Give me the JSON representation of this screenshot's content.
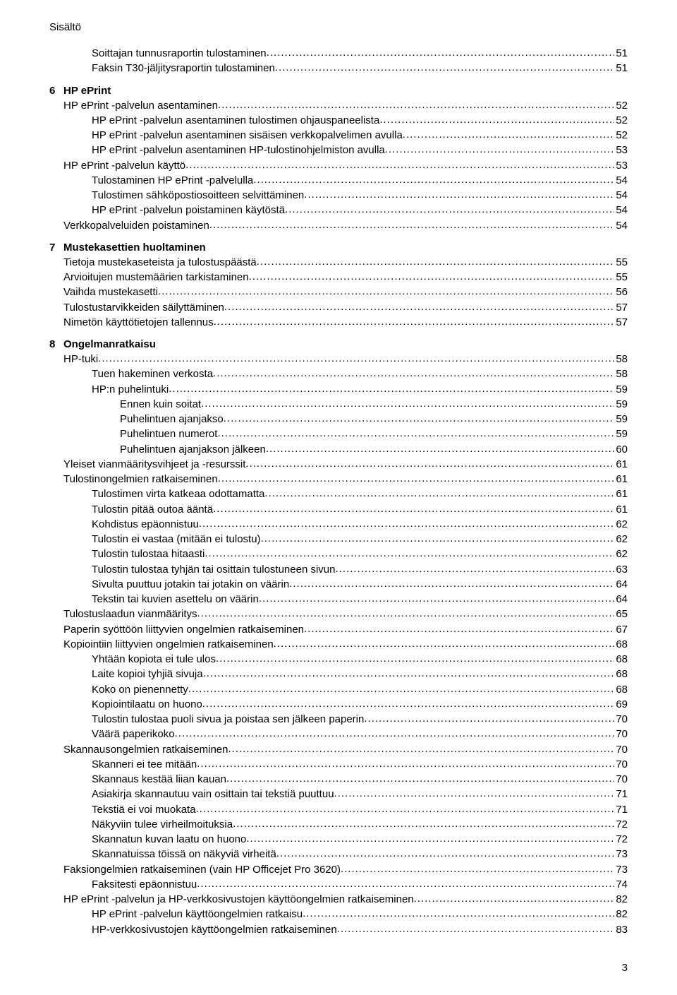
{
  "top_heading": "Sisältö",
  "page_number": "3",
  "entries": [
    {
      "type": "line",
      "indent": 2,
      "label": "Soittajan tunnusraportin tulostaminen",
      "page": "51"
    },
    {
      "type": "line",
      "indent": 2,
      "label": "Faksin T30-jäljitysraportin tulostaminen",
      "page": "51"
    },
    {
      "type": "chapter",
      "num": "6",
      "title": "HP ePrint"
    },
    {
      "type": "line",
      "indent": 1,
      "label": "HP ePrint -palvelun asentaminen",
      "page": "52"
    },
    {
      "type": "line",
      "indent": 2,
      "label": "HP ePrint -palvelun asentaminen tulostimen ohjauspaneelista",
      "page": "52"
    },
    {
      "type": "line",
      "indent": 2,
      "label": "HP ePrint -palvelun asentaminen sisäisen verkkopalvelimen avulla",
      "page": "52"
    },
    {
      "type": "line",
      "indent": 2,
      "label": "HP ePrint -palvelun asentaminen HP-tulostinohjelmiston avulla",
      "page": "53"
    },
    {
      "type": "line",
      "indent": 1,
      "label": "HP ePrint -palvelun käyttö",
      "page": "53"
    },
    {
      "type": "line",
      "indent": 2,
      "label": "Tulostaminen HP ePrint -palvelulla",
      "page": "54"
    },
    {
      "type": "line",
      "indent": 2,
      "label": "Tulostimen sähköpostiosoitteen selvittäminen",
      "page": "54"
    },
    {
      "type": "line",
      "indent": 2,
      "label": "HP ePrint -palvelun poistaminen käytöstä",
      "page": "54"
    },
    {
      "type": "line",
      "indent": 1,
      "label": "Verkkopalveluiden poistaminen",
      "page": "54"
    },
    {
      "type": "chapter",
      "num": "7",
      "title": "Mustekasettien huoltaminen"
    },
    {
      "type": "line",
      "indent": 1,
      "label": "Tietoja mustekaseteista ja tulostuspäästä",
      "page": "55"
    },
    {
      "type": "line",
      "indent": 1,
      "label": "Arvioitujen mustemäärien tarkistaminen",
      "page": "55"
    },
    {
      "type": "line",
      "indent": 1,
      "label": "Vaihda mustekasetti",
      "page": "56"
    },
    {
      "type": "line",
      "indent": 1,
      "label": "Tulostustarvikkeiden säilyttäminen",
      "page": "57"
    },
    {
      "type": "line",
      "indent": 1,
      "label": "Nimetön käyttötietojen tallennus",
      "page": "57"
    },
    {
      "type": "chapter",
      "num": "8",
      "title": "Ongelmanratkaisu"
    },
    {
      "type": "line",
      "indent": 1,
      "label": "HP-tuki",
      "page": "58"
    },
    {
      "type": "line",
      "indent": 2,
      "label": "Tuen hakeminen verkosta",
      "page": "58"
    },
    {
      "type": "line",
      "indent": 2,
      "label": "HP:n puhelintuki",
      "page": "59"
    },
    {
      "type": "line",
      "indent": 3,
      "label": "Ennen kuin soitat",
      "page": "59"
    },
    {
      "type": "line",
      "indent": 3,
      "label": "Puhelintuen ajanjakso",
      "page": "59"
    },
    {
      "type": "line",
      "indent": 3,
      "label": "Puhelintuen numerot",
      "page": "59"
    },
    {
      "type": "line",
      "indent": 3,
      "label": "Puhelintuen ajanjakson jälkeen",
      "page": "60"
    },
    {
      "type": "line",
      "indent": 1,
      "label": "Yleiset vianmääritysvihjeet ja -resurssit",
      "page": "61"
    },
    {
      "type": "line",
      "indent": 1,
      "label": "Tulostinongelmien ratkaiseminen",
      "page": "61"
    },
    {
      "type": "line",
      "indent": 2,
      "label": "Tulostimen virta katkeaa odottamatta",
      "page": "61"
    },
    {
      "type": "line",
      "indent": 2,
      "label": "Tulostin pitää outoa ääntä",
      "page": "61"
    },
    {
      "type": "line",
      "indent": 2,
      "label": "Kohdistus epäonnistuu",
      "page": "62"
    },
    {
      "type": "line",
      "indent": 2,
      "label": "Tulostin ei vastaa (mitään ei tulostu)",
      "page": "62"
    },
    {
      "type": "line",
      "indent": 2,
      "label": "Tulostin tulostaa hitaasti",
      "page": "62"
    },
    {
      "type": "line",
      "indent": 2,
      "label": "Tulostin tulostaa tyhjän tai osittain tulostuneen sivun",
      "page": "63"
    },
    {
      "type": "line",
      "indent": 2,
      "label": "Sivulta puuttuu jotakin tai jotakin on väärin",
      "page": "64"
    },
    {
      "type": "line",
      "indent": 2,
      "label": "Tekstin tai kuvien asettelu on väärin",
      "page": "64"
    },
    {
      "type": "line",
      "indent": 1,
      "label": "Tulostuslaadun vianmääritys",
      "page": "65"
    },
    {
      "type": "line",
      "indent": 1,
      "label": "Paperin syöttöön liittyvien ongelmien ratkaiseminen",
      "page": "67"
    },
    {
      "type": "line",
      "indent": 1,
      "label": "Kopiointiin liittyvien ongelmien ratkaiseminen",
      "page": "68"
    },
    {
      "type": "line",
      "indent": 2,
      "label": "Yhtään kopiota ei tule ulos",
      "page": "68"
    },
    {
      "type": "line",
      "indent": 2,
      "label": "Laite kopioi tyhjiä sivuja",
      "page": "68"
    },
    {
      "type": "line",
      "indent": 2,
      "label": "Koko on pienennetty",
      "page": "68"
    },
    {
      "type": "line",
      "indent": 2,
      "label": "Kopiointilaatu on huono",
      "page": "69"
    },
    {
      "type": "line",
      "indent": 2,
      "label": "Tulostin tulostaa puoli sivua ja poistaa sen jälkeen paperin",
      "page": "70"
    },
    {
      "type": "line",
      "indent": 2,
      "label": "Väärä paperikoko",
      "page": "70"
    },
    {
      "type": "line",
      "indent": 1,
      "label": "Skannausongelmien ratkaiseminen",
      "page": "70"
    },
    {
      "type": "line",
      "indent": 2,
      "label": "Skanneri ei tee mitään",
      "page": "70"
    },
    {
      "type": "line",
      "indent": 2,
      "label": "Skannaus kestää liian kauan",
      "page": "70"
    },
    {
      "type": "line",
      "indent": 2,
      "label": "Asiakirja skannautuu vain osittain tai tekstiä puuttuu",
      "page": "71"
    },
    {
      "type": "line",
      "indent": 2,
      "label": "Tekstiä ei voi muokata",
      "page": "71"
    },
    {
      "type": "line",
      "indent": 2,
      "label": "Näkyviin tulee virheilmoituksia",
      "page": "72"
    },
    {
      "type": "line",
      "indent": 2,
      "label": "Skannatun kuvan laatu on huono",
      "page": "72"
    },
    {
      "type": "line",
      "indent": 2,
      "label": "Skannatuissa töissä on näkyviä virheitä",
      "page": "73"
    },
    {
      "type": "line",
      "indent": 1,
      "label": "Faksiongelmien ratkaiseminen (vain HP Officejet Pro 3620)",
      "page": "73"
    },
    {
      "type": "line",
      "indent": 2,
      "label": "Faksitesti epäonnistuu",
      "page": "74"
    },
    {
      "type": "line",
      "indent": 1,
      "label": "HP ePrint -palvelun ja HP-verkkosivustojen käyttöongelmien ratkaiseminen",
      "page": "82"
    },
    {
      "type": "line",
      "indent": 2,
      "label": "HP ePrint -palvelun käyttöongelmien ratkaisu",
      "page": "82"
    },
    {
      "type": "line",
      "indent": 2,
      "label": "HP-verkkosivustojen käyttöongelmien ratkaiseminen",
      "page": "83"
    }
  ]
}
